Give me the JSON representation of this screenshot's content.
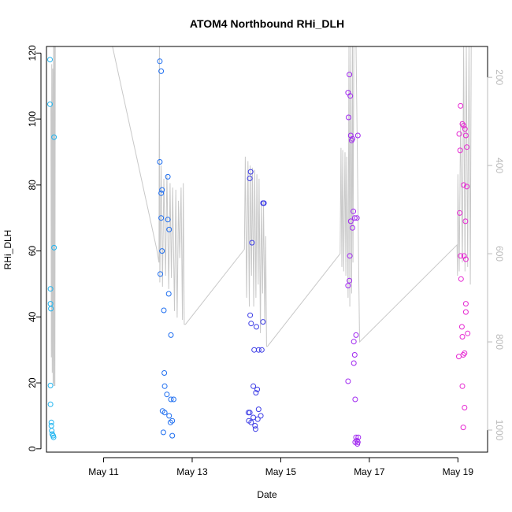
{
  "chart_data": {
    "type": "scatter",
    "title": "ATOM4 Northbound RHi_DLH",
    "xlabel": "Date",
    "ylabel": "RHi_DLH",
    "xlim": [
      9.71,
      19.67
    ],
    "ylim": [
      -1,
      122
    ],
    "y_ticks": [
      0,
      20,
      40,
      60,
      80,
      100,
      120
    ],
    "x_ticks": [
      {
        "value": 11,
        "label": "May 11"
      },
      {
        "value": 13,
        "label": "May 13"
      },
      {
        "value": 15,
        "label": "May 15"
      },
      {
        "value": 17,
        "label": "May 17"
      },
      {
        "value": 19,
        "label": "May 19"
      }
    ],
    "secondary_axis": {
      "side": "right",
      "reversed": true,
      "range": [
        1050,
        130
      ],
      "ticks": [
        200,
        400,
        600,
        800,
        1000
      ],
      "color": "#bbbbbb",
      "note": "pressure trace (hPa), drawn as gray line"
    },
    "line_series": {
      "name": "pressure",
      "color": "#c8c8c8",
      "points": [
        [
          9.81,
          265
        ],
        [
          9.82,
          835
        ],
        [
          9.83,
          170
        ],
        [
          9.84,
          870
        ],
        [
          9.85,
          180
        ],
        [
          9.86,
          895
        ],
        [
          9.87,
          130
        ],
        [
          9.88,
          900
        ],
        [
          9.89,
          130
        ],
        [
          9.9,
          900
        ],
        [
          9.91,
          130
        ],
        [
          10.2,
          130
        ],
        [
          11.2,
          130
        ],
        [
          12.2,
          590
        ],
        [
          12.25,
          620
        ],
        [
          12.26,
          130
        ],
        [
          12.27,
          665
        ],
        [
          12.3,
          400
        ],
        [
          12.33,
          675
        ],
        [
          12.36,
          430
        ],
        [
          12.4,
          650
        ],
        [
          12.43,
          420
        ],
        [
          12.47,
          680
        ],
        [
          12.5,
          440
        ],
        [
          12.53,
          655
        ],
        [
          12.56,
          450
        ],
        [
          12.6,
          730
        ],
        [
          12.63,
          455
        ],
        [
          12.66,
          745
        ],
        [
          12.69,
          480
        ],
        [
          12.72,
          610
        ],
        [
          12.75,
          450
        ],
        [
          12.78,
          750
        ],
        [
          12.8,
          440
        ],
        [
          12.82,
          760
        ],
        [
          12.85,
          760
        ],
        [
          14.18,
          590
        ],
        [
          14.2,
          380
        ],
        [
          14.23,
          700
        ],
        [
          14.26,
          390
        ],
        [
          14.29,
          720
        ],
        [
          14.31,
          400
        ],
        [
          14.34,
          650
        ],
        [
          14.36,
          405
        ],
        [
          14.39,
          720
        ],
        [
          14.41,
          410
        ],
        [
          14.44,
          700
        ],
        [
          14.46,
          420
        ],
        [
          14.49,
          670
        ],
        [
          14.51,
          430
        ],
        [
          14.54,
          780
        ],
        [
          14.56,
          480
        ],
        [
          14.59,
          690
        ],
        [
          14.61,
          480
        ],
        [
          14.64,
          760
        ],
        [
          14.66,
          560
        ],
        [
          14.68,
          810
        ],
        [
          14.7,
          810
        ],
        [
          16.34,
          600
        ],
        [
          16.36,
          360
        ],
        [
          16.38,
          630
        ],
        [
          16.4,
          365
        ],
        [
          16.42,
          640
        ],
        [
          16.45,
          370
        ],
        [
          16.47,
          650
        ],
        [
          16.49,
          380
        ],
        [
          16.52,
          700
        ],
        [
          16.54,
          130
        ],
        [
          16.56,
          720
        ],
        [
          16.58,
          130
        ],
        [
          16.6,
          690
        ],
        [
          16.62,
          130
        ],
        [
          16.63,
          620
        ],
        [
          16.65,
          130
        ],
        [
          16.7,
          130
        ],
        [
          16.78,
          800
        ],
        [
          18.98,
          580
        ],
        [
          18.99,
          650
        ],
        [
          19.0,
          420
        ],
        [
          19.03,
          640
        ],
        [
          19.06,
          300
        ],
        [
          19.1,
          620
        ],
        [
          19.13,
          130
        ],
        [
          19.16,
          640
        ],
        [
          19.19,
          130
        ],
        [
          19.22,
          630
        ],
        [
          19.25,
          130
        ],
        [
          19.28,
          670
        ],
        [
          19.3,
          130
        ]
      ]
    },
    "series": [
      {
        "name": "descent/ascent 1",
        "color": "#1eb4f0",
        "points": [
          [
            9.79,
            118
          ],
          [
            9.79,
            104.5
          ],
          [
            9.8,
            48.5
          ],
          [
            9.8,
            44
          ],
          [
            9.81,
            42.5
          ],
          [
            9.8,
            19.2
          ],
          [
            9.8,
            13.5
          ],
          [
            9.82,
            8
          ],
          [
            9.82,
            7
          ],
          [
            9.83,
            5.5
          ],
          [
            9.84,
            4.5
          ],
          [
            9.86,
            4
          ],
          [
            9.87,
            3.5
          ],
          [
            9.88,
            94.5
          ],
          [
            9.88,
            61
          ]
        ]
      },
      {
        "name": "descent/ascent 2",
        "color": "#1e6ef0",
        "points": [
          [
            12.27,
            117.5
          ],
          [
            12.27,
            87
          ],
          [
            12.3,
            114.5
          ],
          [
            12.3,
            77.5
          ],
          [
            12.32,
            78.5
          ],
          [
            12.3,
            70
          ],
          [
            12.32,
            60
          ],
          [
            12.28,
            53
          ],
          [
            12.36,
            42
          ],
          [
            12.45,
            82.5
          ],
          [
            12.45,
            69.5
          ],
          [
            12.48,
            66.5
          ],
          [
            12.47,
            47
          ],
          [
            12.52,
            34.5
          ],
          [
            12.37,
            23
          ],
          [
            12.38,
            19
          ],
          [
            12.43,
            16.5
          ],
          [
            12.33,
            11.5
          ],
          [
            12.38,
            11
          ],
          [
            12.48,
            10
          ],
          [
            12.51,
            8
          ],
          [
            12.55,
            8.5
          ],
          [
            12.52,
            15
          ],
          [
            12.58,
            15
          ],
          [
            12.35,
            5
          ],
          [
            12.55,
            4
          ]
        ]
      },
      {
        "name": "descent/ascent 3",
        "color": "#3c3ce6",
        "points": [
          [
            14.32,
            84
          ],
          [
            14.3,
            82
          ],
          [
            14.35,
            62.5
          ],
          [
            14.62,
            74.5
          ],
          [
            14.6,
            74.5
          ],
          [
            14.31,
            40.5
          ],
          [
            14.33,
            38
          ],
          [
            14.45,
            37
          ],
          [
            14.6,
            38.5
          ],
          [
            14.4,
            30
          ],
          [
            14.5,
            30
          ],
          [
            14.57,
            30
          ],
          [
            14.38,
            19
          ],
          [
            14.44,
            17
          ],
          [
            14.47,
            18
          ],
          [
            14.27,
            11
          ],
          [
            14.3,
            11
          ],
          [
            14.28,
            8.5
          ],
          [
            14.33,
            8
          ],
          [
            14.38,
            9.5
          ],
          [
            14.48,
            9
          ],
          [
            14.55,
            10
          ],
          [
            14.5,
            12
          ],
          [
            14.42,
            7
          ],
          [
            14.43,
            6
          ]
        ]
      },
      {
        "name": "descent/ascent 4",
        "color": "#a028f0",
        "points": [
          [
            16.55,
            113.5
          ],
          [
            16.52,
            108
          ],
          [
            16.57,
            107
          ],
          [
            16.53,
            100.5
          ],
          [
            16.58,
            95
          ],
          [
            16.6,
            93.5
          ],
          [
            16.62,
            94
          ],
          [
            16.74,
            95
          ],
          [
            16.64,
            72
          ],
          [
            16.67,
            70
          ],
          [
            16.72,
            70
          ],
          [
            16.58,
            69
          ],
          [
            16.62,
            67
          ],
          [
            16.56,
            58.5
          ],
          [
            16.52,
            49.5
          ],
          [
            16.55,
            51
          ],
          [
            16.7,
            34.5
          ],
          [
            16.65,
            32.5
          ],
          [
            16.67,
            28.5
          ],
          [
            16.65,
            26
          ],
          [
            16.52,
            20.5
          ],
          [
            16.68,
            15
          ],
          [
            16.7,
            3.5
          ],
          [
            16.72,
            2.5
          ],
          [
            16.74,
            2
          ],
          [
            16.68,
            2
          ],
          [
            16.75,
            3.5
          ],
          [
            16.73,
            1.5
          ]
        ]
      },
      {
        "name": "descent/ascent 5",
        "color": "#e628d2",
        "points": [
          [
            19.06,
            104
          ],
          [
            19.1,
            98.5
          ],
          [
            19.13,
            98
          ],
          [
            19.16,
            97
          ],
          [
            19.03,
            95.5
          ],
          [
            19.18,
            95
          ],
          [
            19.05,
            90.5
          ],
          [
            19.2,
            91.5
          ],
          [
            19.13,
            80
          ],
          [
            19.2,
            79.5
          ],
          [
            19.17,
            69
          ],
          [
            19.04,
            71.5
          ],
          [
            19.06,
            58.5
          ],
          [
            19.14,
            58.5
          ],
          [
            19.18,
            57.5
          ],
          [
            19.07,
            51.5
          ],
          [
            19.18,
            44
          ],
          [
            19.18,
            41.5
          ],
          [
            19.09,
            37
          ],
          [
            19.22,
            35
          ],
          [
            19.1,
            34
          ],
          [
            19.12,
            28.5
          ],
          [
            19.15,
            29
          ],
          [
            19.02,
            28
          ],
          [
            19.1,
            19
          ],
          [
            19.15,
            12.5
          ],
          [
            19.12,
            6.5
          ]
        ]
      }
    ]
  }
}
